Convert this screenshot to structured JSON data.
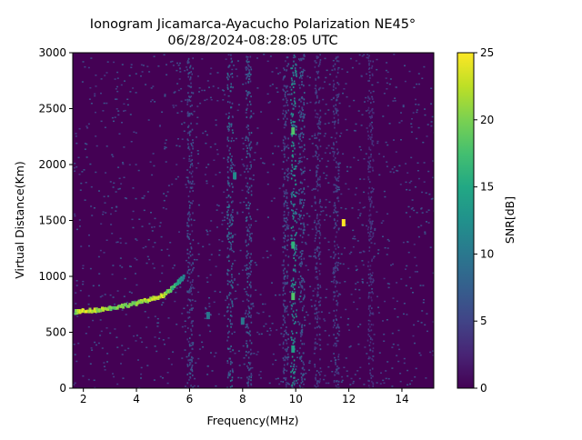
{
  "chart_data": {
    "type": "heatmap",
    "title": "Ionogram Jicamarca-Ayacucho Polarization NE45°",
    "subtitle": "06/28/2024-08:28:05 UTC",
    "xlabel": "Frequency(MHz)",
    "ylabel": "Virtual Distance(Km)",
    "xlim": [
      1.6,
      15.2
    ],
    "ylim": [
      0,
      3000
    ],
    "x_ticks": [
      2,
      4,
      6,
      8,
      10,
      12,
      14
    ],
    "x_tick_labels": [
      "2",
      "4",
      "6",
      "8",
      "10",
      "12",
      "14"
    ],
    "y_ticks": [
      0,
      500,
      1000,
      1500,
      2000,
      2500,
      3000
    ],
    "y_tick_labels": [
      "0",
      "500",
      "1000",
      "1500",
      "2000",
      "2500",
      "3000"
    ],
    "colorbar": {
      "label": "SNR[dB]",
      "colormap": "viridis",
      "range": [
        0,
        25
      ],
      "ticks": [
        0,
        5,
        10,
        15,
        20,
        25
      ],
      "tick_labels": [
        "0",
        "5",
        "10",
        "15",
        "20",
        "25"
      ]
    },
    "background_snr_db": 1,
    "grid": false,
    "features": {
      "f_region_trace": {
        "points": [
          [
            1.7,
            680
          ],
          [
            2.0,
            690
          ],
          [
            2.5,
            700
          ],
          [
            3.0,
            715
          ],
          [
            3.5,
            735
          ],
          [
            4.0,
            760
          ],
          [
            4.5,
            790
          ],
          [
            5.0,
            830
          ],
          [
            5.3,
            880
          ],
          [
            5.6,
            950
          ],
          [
            5.8,
            1000
          ]
        ],
        "snr_db": [
          20,
          24,
          22,
          20,
          19,
          20,
          22,
          23,
          18,
          14,
          12
        ]
      },
      "interference_bands_mhz": [
        {
          "x": 6.0,
          "snr_db": 6
        },
        {
          "x": 7.5,
          "snr_db": 8
        },
        {
          "x": 8.2,
          "snr_db": 7
        },
        {
          "x": 9.6,
          "snr_db": 6
        },
        {
          "x": 9.9,
          "snr_db": 12
        },
        {
          "x": 10.2,
          "snr_db": 7
        },
        {
          "x": 10.8,
          "snr_db": 5
        },
        {
          "x": 11.5,
          "snr_db": 5
        },
        {
          "x": 12.8,
          "snr_db": 4
        }
      ],
      "hotspots": [
        {
          "x": 9.9,
          "y": 2300,
          "snr_db": 18
        },
        {
          "x": 9.9,
          "y": 1280,
          "snr_db": 16
        },
        {
          "x": 9.9,
          "y": 820,
          "snr_db": 18
        },
        {
          "x": 9.9,
          "y": 350,
          "snr_db": 14
        },
        {
          "x": 7.7,
          "y": 1900,
          "snr_db": 12
        },
        {
          "x": 11.8,
          "y": 1480,
          "snr_db": 25
        },
        {
          "x": 8.0,
          "y": 600,
          "snr_db": 10
        },
        {
          "x": 6.7,
          "y": 650,
          "snr_db": 10
        }
      ]
    }
  }
}
